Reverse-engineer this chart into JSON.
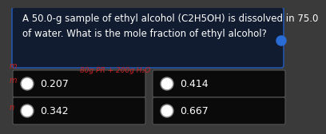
{
  "title_line1": "A 50.0-g sample of ethyl alcohol (C2H5OH) is dissolved in 75.0",
  "title_line2": "of water. What is the mole fraction of ethyl alcohol?",
  "title_bg": "#111c30",
  "title_text_color": "#ffffff",
  "answer_options": [
    "0.207",
    "0.414",
    "0.342",
    "0.667"
  ],
  "answer_bg": "#0a0a0a",
  "answer_border": "#555555",
  "answer_text_color": "#ffffff",
  "bg_color": "#3a3a3a",
  "handwriting_color": "#cc2222",
  "hw_main": "80g PR + 200g H₂O",
  "hw_left_top": "m",
  "hw_left_mid": "m",
  "hw_left_bot": "n",
  "circle_outer": "#888888",
  "circle_inner": "#ffffff",
  "blue_dot": "#2a6cd6",
  "title_fontsize": 8.5,
  "answer_fontsize": 9.0
}
